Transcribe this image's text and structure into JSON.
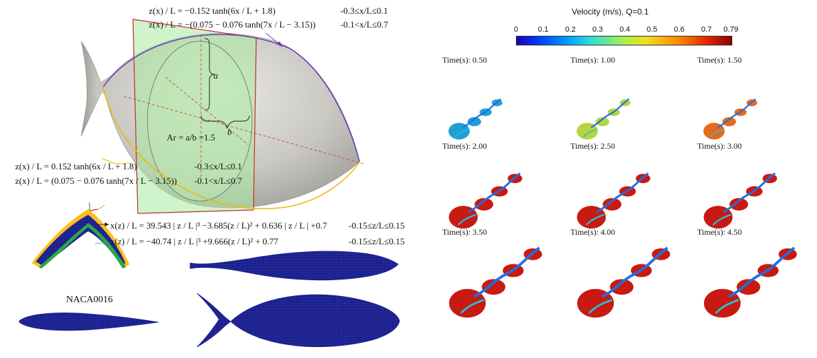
{
  "left": {
    "top_equations": {
      "eq1": "z(x) / L = −0.152 tanh(6x / L + 1.8)",
      "range1": "-0.3≤x/L≤0.1",
      "eq2": "z(x) / L = −(0.075 − 0.076 tanh(7x / L − 3.15))",
      "range2": "-0.1<x/L≤0.7"
    },
    "ellipse_labels": {
      "a": "a",
      "b": "b",
      "ar": "Ar = a/b =1.5"
    },
    "bottom_equations": {
      "eq1": "z(x) / L = 0.152 tanh(6x / L + 1.8)",
      "range1": "-0.3≤x/L≤0.1",
      "eq2": "z(x) / L = (0.075 − 0.076 tanh(7x / L − 3.15))",
      "range2": "-0.1<x/L≤0.7"
    },
    "tail_equations": {
      "eq1": "x(z) / L = 39.543 | z / L |³ −3.685(z / L)² + 0.636 | z / L | +0.7",
      "range1": "-0.15≤z/L≤0.15",
      "eq2": "x(z) / L = −40.74 | z / L |³ +9.666(z / L)² + 0.77",
      "range2": "-0.15≤z/L≤0.15"
    },
    "naca_label": "NACA0016"
  },
  "right": {
    "colorbar": {
      "title": "Velocity (m/s), Q=0.1",
      "ticks": [
        "0",
        "0.1",
        "0.2",
        "0.3",
        "0.4",
        "0.5",
        "0.6",
        "0.7",
        "0.79"
      ]
    },
    "frames": [
      {
        "label": "Time(s): 0.50",
        "color": "#1f9fd6"
      },
      {
        "label": "Time(s): 1.00",
        "color": "#b6d442"
      },
      {
        "label": "Time(s): 1.50",
        "color": "#e46a1e"
      },
      {
        "label": "Time(s): 2.00",
        "color": "#c81a12"
      },
      {
        "label": "Time(s): 2.50",
        "color": "#c81a12"
      },
      {
        "label": "Time(s): 3.00",
        "color": "#c81a12"
      },
      {
        "label": "Time(s): 3.50",
        "color": "#c81a12"
      },
      {
        "label": "Time(s): 4.00",
        "color": "#c81a12"
      },
      {
        "label": "Time(s): 4.50",
        "color": "#c81a12"
      }
    ]
  }
}
